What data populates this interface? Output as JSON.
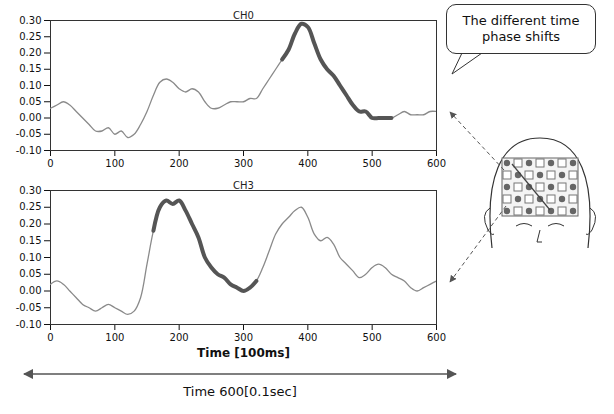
{
  "chart_data": [
    {
      "type": "line",
      "title": "CH0",
      "annotation": "The different time phase shifts",
      "x": [
        0,
        10,
        20,
        30,
        40,
        50,
        60,
        70,
        80,
        90,
        100,
        110,
        120,
        130,
        140,
        150,
        160,
        170,
        180,
        190,
        200,
        210,
        220,
        230,
        240,
        250,
        260,
        270,
        280,
        290,
        300,
        310,
        320,
        330,
        340,
        350,
        360,
        370,
        380,
        390,
        400,
        410,
        420,
        430,
        440,
        450,
        460,
        470,
        480,
        490,
        500,
        510,
        520,
        530,
        540,
        550,
        560,
        570,
        580,
        590,
        600
      ],
      "xlim": [
        0,
        600
      ],
      "xticks": [
        0,
        100,
        200,
        300,
        400,
        500,
        600
      ],
      "ylim": [
        -0.1,
        0.3
      ],
      "yticks": [
        {
          "value": -0.1,
          "label": "-0.10"
        },
        {
          "value": -0.05,
          "label": "-0.05"
        },
        {
          "value": 0,
          "label": "0.00"
        },
        {
          "value": 0.05,
          "label": "0.05"
        },
        {
          "value": 0.1,
          "label": "0.10"
        },
        {
          "value": 0.15,
          "label": "0.15"
        },
        {
          "value": 0.2,
          "label": "0.20"
        },
        {
          "value": 0.25,
          "label": "0.25"
        },
        {
          "value": 0.3,
          "label": "0.30"
        }
      ],
      "series": [
        {
          "color": "#8a8a8a",
          "line_style": "solid",
          "values": [
            0.03,
            0.04,
            0.05,
            0.04,
            0.02,
            0.0,
            -0.02,
            -0.04,
            -0.04,
            -0.03,
            -0.05,
            -0.04,
            -0.06,
            -0.05,
            -0.02,
            0.02,
            0.07,
            0.11,
            0.12,
            0.11,
            0.09,
            0.08,
            0.09,
            0.08,
            0.05,
            0.03,
            0.03,
            0.04,
            0.05,
            0.05,
            0.05,
            0.06,
            0.06,
            0.09,
            0.12,
            0.15,
            0.18,
            0.21,
            0.26,
            0.29,
            0.28,
            0.23,
            0.18,
            0.15,
            0.13,
            0.1,
            0.07,
            0.04,
            0.02,
            0.02,
            0.0,
            0.0,
            0.0,
            0.0,
            0.01,
            0.02,
            0.01,
            0.01,
            0.01,
            0.02,
            0.02
          ]
        },
        {
          "color": "#555555",
          "line_style": "thick",
          "values": [
            null,
            null,
            null,
            null,
            null,
            null,
            null,
            null,
            null,
            null,
            null,
            null,
            null,
            null,
            null,
            null,
            null,
            null,
            null,
            null,
            null,
            null,
            null,
            null,
            null,
            null,
            null,
            null,
            null,
            null,
            null,
            null,
            null,
            null,
            null,
            null,
            0.18,
            0.21,
            0.26,
            0.29,
            0.28,
            0.23,
            0.18,
            0.15,
            0.13,
            0.1,
            0.07,
            0.04,
            0.02,
            0.02,
            0.0,
            0.0,
            0.0,
            0.0,
            null,
            null,
            null,
            null,
            null,
            null,
            null
          ]
        }
      ]
    },
    {
      "type": "line",
      "title": "CH3",
      "xlabel": "Time [100ms]",
      "x": [
        0,
        10,
        20,
        30,
        40,
        50,
        60,
        70,
        80,
        90,
        100,
        110,
        120,
        130,
        140,
        150,
        160,
        170,
        180,
        190,
        200,
        210,
        220,
        230,
        240,
        250,
        260,
        270,
        280,
        290,
        300,
        310,
        320,
        330,
        340,
        350,
        360,
        370,
        380,
        390,
        400,
        410,
        420,
        430,
        440,
        450,
        460,
        470,
        480,
        490,
        500,
        510,
        520,
        530,
        540,
        550,
        560,
        570,
        580,
        590,
        600
      ],
      "xlim": [
        0,
        600
      ],
      "xticks": [
        0,
        100,
        200,
        300,
        400,
        500,
        600
      ],
      "ylim": [
        -0.1,
        0.3
      ],
      "yticks": [
        {
          "value": -0.1,
          "label": "-0.10"
        },
        {
          "value": -0.05,
          "label": "-0.05"
        },
        {
          "value": 0,
          "label": "0.00"
        },
        {
          "value": 0.05,
          "label": "0.05"
        },
        {
          "value": 0.1,
          "label": "0.10"
        },
        {
          "value": 0.15,
          "label": "0.15"
        },
        {
          "value": 0.2,
          "label": "0.20"
        },
        {
          "value": 0.25,
          "label": "0.25"
        },
        {
          "value": 0.3,
          "label": "0.30"
        }
      ],
      "series": [
        {
          "color": "#8a8a8a",
          "line_style": "solid",
          "values": [
            0.02,
            0.03,
            0.02,
            0.0,
            -0.02,
            -0.04,
            -0.05,
            -0.06,
            -0.05,
            -0.04,
            -0.05,
            -0.06,
            -0.07,
            -0.06,
            -0.02,
            0.08,
            0.18,
            0.25,
            0.27,
            0.26,
            0.27,
            0.24,
            0.2,
            0.16,
            0.1,
            0.07,
            0.05,
            0.04,
            0.02,
            0.01,
            0.0,
            0.01,
            0.03,
            0.07,
            0.12,
            0.17,
            0.2,
            0.22,
            0.24,
            0.25,
            0.22,
            0.17,
            0.15,
            0.16,
            0.14,
            0.1,
            0.08,
            0.06,
            0.04,
            0.05,
            0.07,
            0.08,
            0.07,
            0.05,
            0.04,
            0.03,
            0.01,
            0.0,
            0.01,
            0.02,
            0.03
          ]
        },
        {
          "color": "#555555",
          "line_style": "thick",
          "values": [
            null,
            null,
            null,
            null,
            null,
            null,
            null,
            null,
            null,
            null,
            null,
            null,
            null,
            null,
            null,
            null,
            0.18,
            0.25,
            0.27,
            0.26,
            0.27,
            0.24,
            0.2,
            0.16,
            0.1,
            0.07,
            0.05,
            0.04,
            0.02,
            0.01,
            0.0,
            0.01,
            0.03,
            null,
            null,
            null,
            null,
            null,
            null,
            null,
            null,
            null,
            null,
            null,
            null,
            null,
            null,
            null,
            null,
            null,
            null,
            null,
            null,
            null,
            null,
            null,
            null,
            null,
            null,
            null,
            null
          ]
        }
      ]
    }
  ],
  "caption": "Time 600[0.1sec]"
}
